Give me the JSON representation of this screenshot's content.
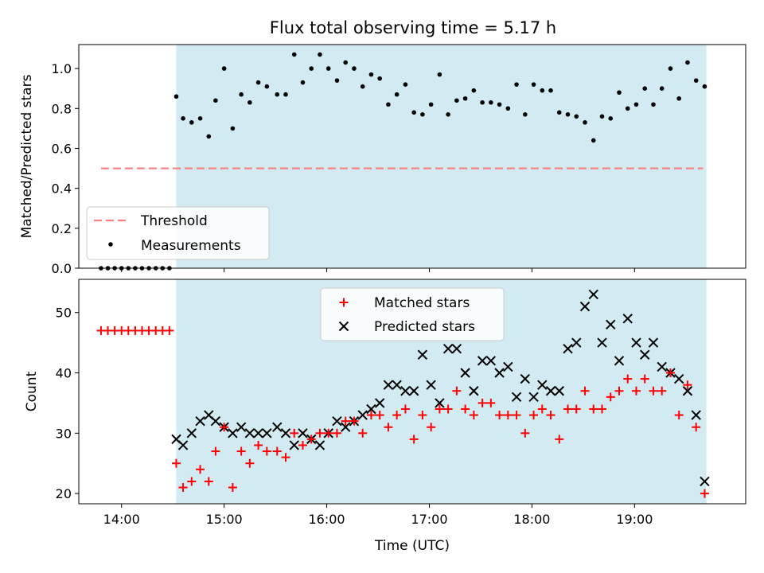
{
  "title": "Flux total observing time = 5.17 h",
  "colors": {
    "shade": "#add8e6",
    "threshold": "#ff7f7f",
    "measurement": "#000000",
    "matched": "#ff0000",
    "predicted": "#000000"
  },
  "chart_data": [
    {
      "type": "scatter",
      "ylabel": "Matched/Predicted stars",
      "xlim": [
        "13:35",
        "20:05"
      ],
      "ylim": [
        0,
        1.12
      ],
      "yticks": [
        0.0,
        0.2,
        0.4,
        0.6,
        0.8,
        1.0
      ],
      "ytick_labels": [
        "0.0",
        "0.2",
        "0.4",
        "0.6",
        "0.8",
        "1.0"
      ],
      "shaded_span": [
        "14:32",
        "19:42"
      ],
      "legend": {
        "position": "lower-left",
        "entries": [
          "Threshold",
          "Measurements"
        ]
      },
      "series": [
        {
          "name": "Threshold",
          "style": "dashed-line",
          "x": [
            "13:48",
            "19:40"
          ],
          "y": [
            0.5,
            0.5
          ]
        },
        {
          "name": "Measurements",
          "style": "dot",
          "x": [
            "13:48",
            "13:52",
            "13:56",
            "14:00",
            "14:04",
            "14:08",
            "14:12",
            "14:16",
            "14:20",
            "14:24",
            "14:28",
            "14:32",
            "14:36",
            "14:41",
            "14:46",
            "14:51",
            "14:55",
            "15:00",
            "15:05",
            "15:10",
            "15:15",
            "15:20",
            "15:25",
            "15:31",
            "15:36",
            "15:41",
            "15:46",
            "15:51",
            "15:56",
            "16:01",
            "16:06",
            "16:11",
            "16:16",
            "16:21",
            "16:26",
            "16:31",
            "16:36",
            "16:41",
            "16:46",
            "16:51",
            "16:56",
            "17:01",
            "17:06",
            "17:11",
            "17:16",
            "17:21",
            "17:26",
            "17:31",
            "17:36",
            "17:41",
            "17:46",
            "17:51",
            "17:56",
            "18:01",
            "18:06",
            "18:11",
            "18:16",
            "18:21",
            "18:26",
            "18:31",
            "18:36",
            "18:41",
            "18:46",
            "18:51",
            "18:56",
            "19:01",
            "19:06",
            "19:11",
            "19:16",
            "19:21",
            "19:26",
            "19:31",
            "19:36",
            "19:41"
          ],
          "y": [
            0,
            0,
            0,
            0,
            0,
            0,
            0,
            0,
            0,
            0,
            0,
            0.86,
            0.75,
            0.73,
            0.75,
            0.66,
            0.84,
            1.0,
            0.7,
            0.87,
            0.83,
            0.93,
            0.91,
            0.87,
            0.87,
            1.07,
            0.93,
            1.0,
            1.07,
            1.0,
            0.94,
            1.03,
            1.0,
            0.91,
            0.97,
            0.95,
            0.82,
            0.87,
            0.92,
            0.78,
            0.77,
            0.82,
            0.97,
            0.77,
            0.84,
            0.85,
            0.89,
            0.83,
            0.83,
            0.82,
            0.8,
            0.92,
            0.77,
            0.92,
            0.89,
            0.89,
            0.78,
            0.77,
            0.76,
            0.73,
            0.64,
            0.76,
            0.75,
            0.88,
            0.8,
            0.82,
            0.9,
            0.82,
            0.9,
            1.0,
            0.85,
            1.03,
            0.94,
            0.91
          ]
        }
      ]
    },
    {
      "type": "scatter",
      "ylabel": "Count",
      "xlabel": "Time (UTC)",
      "xlim": [
        "13:35",
        "20:05"
      ],
      "ylim": [
        18.3,
        55.5
      ],
      "yticks": [
        20,
        30,
        40,
        50
      ],
      "ytick_labels": [
        "20",
        "30",
        "40",
        "50"
      ],
      "xticks": [
        "14:00",
        "15:00",
        "16:00",
        "17:00",
        "18:00",
        "19:00"
      ],
      "shaded_span": [
        "14:32",
        "19:42"
      ],
      "legend": {
        "position": "top-center",
        "entries": [
          "Matched stars",
          "Predicted stars"
        ]
      },
      "series": [
        {
          "name": "Matched stars",
          "marker": "plus",
          "x": [
            "13:48",
            "13:52",
            "13:56",
            "14:00",
            "14:04",
            "14:08",
            "14:12",
            "14:16",
            "14:20",
            "14:24",
            "14:28",
            "14:32",
            "14:36",
            "14:41",
            "14:46",
            "14:51",
            "14:55",
            "15:00",
            "15:05",
            "15:10",
            "15:15",
            "15:20",
            "15:25",
            "15:31",
            "15:36",
            "15:41",
            "15:46",
            "15:51",
            "15:56",
            "16:01",
            "16:06",
            "16:11",
            "16:16",
            "16:21",
            "16:26",
            "16:31",
            "16:36",
            "16:41",
            "16:46",
            "16:51",
            "16:56",
            "17:01",
            "17:06",
            "17:11",
            "17:16",
            "17:21",
            "17:26",
            "17:31",
            "17:36",
            "17:41",
            "17:46",
            "17:51",
            "17:56",
            "18:01",
            "18:06",
            "18:11",
            "18:16",
            "18:21",
            "18:26",
            "18:31",
            "18:36",
            "18:41",
            "18:46",
            "18:51",
            "18:56",
            "19:01",
            "19:06",
            "19:11",
            "19:16",
            "19:21",
            "19:26",
            "19:31",
            "19:36",
            "19:41"
          ],
          "y": [
            47,
            47,
            47,
            47,
            47,
            47,
            47,
            47,
            47,
            47,
            47,
            25,
            21,
            22,
            24,
            22,
            27,
            31,
            21,
            27,
            25,
            28,
            27,
            27,
            26,
            30,
            28,
            29,
            30,
            30,
            30,
            32,
            32,
            30,
            33,
            33,
            31,
            33,
            34,
            29,
            33,
            31,
            34,
            34,
            37,
            34,
            33,
            35,
            35,
            33,
            33,
            33,
            30,
            33,
            34,
            33,
            29,
            34,
            34,
            37,
            34,
            34,
            36,
            37,
            39,
            37,
            39,
            37,
            37,
            40,
            33,
            38,
            31,
            20
          ]
        },
        {
          "name": "Predicted stars",
          "marker": "x",
          "x": [
            "14:32",
            "14:36",
            "14:41",
            "14:46",
            "14:51",
            "14:55",
            "15:00",
            "15:05",
            "15:10",
            "15:15",
            "15:20",
            "15:25",
            "15:31",
            "15:36",
            "15:41",
            "15:46",
            "15:51",
            "15:56",
            "16:01",
            "16:06",
            "16:11",
            "16:16",
            "16:21",
            "16:26",
            "16:31",
            "16:36",
            "16:41",
            "16:46",
            "16:51",
            "16:56",
            "17:01",
            "17:06",
            "17:11",
            "17:16",
            "17:21",
            "17:26",
            "17:31",
            "17:36",
            "17:41",
            "17:46",
            "17:51",
            "17:56",
            "18:01",
            "18:06",
            "18:11",
            "18:16",
            "18:21",
            "18:26",
            "18:31",
            "18:36",
            "18:41",
            "18:46",
            "18:51",
            "18:56",
            "19:01",
            "19:06",
            "19:11",
            "19:16",
            "19:21",
            "19:26",
            "19:31",
            "19:36",
            "19:41"
          ],
          "y": [
            29,
            28,
            30,
            32,
            33,
            32,
            31,
            30,
            31,
            30,
            30,
            30,
            31,
            30,
            28,
            30,
            29,
            28,
            30,
            32,
            31,
            32,
            33,
            34,
            35,
            38,
            38,
            37,
            37,
            43,
            38,
            35,
            44,
            44,
            40,
            37,
            42,
            42,
            40,
            41,
            36,
            39,
            36,
            38,
            37,
            37,
            44,
            45,
            51,
            53,
            45,
            48,
            42,
            49,
            45,
            43,
            45,
            41,
            40,
            39,
            37,
            33,
            22
          ]
        }
      ]
    }
  ]
}
